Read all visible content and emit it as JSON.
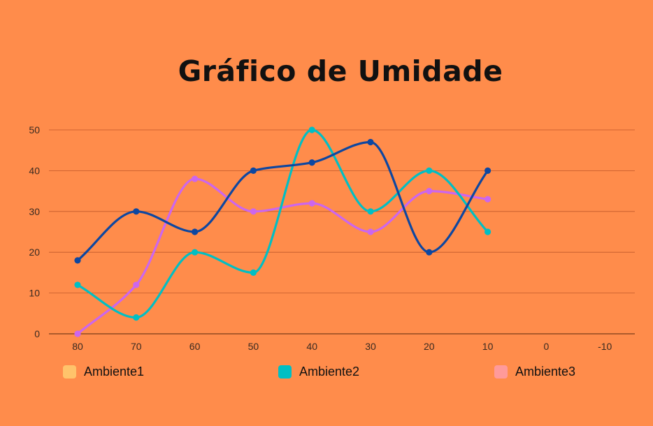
{
  "chart_data": {
    "type": "line",
    "title": "Gráfico de Umidade",
    "categories": [
      "80",
      "70",
      "60",
      "50",
      "40",
      "30",
      "20",
      "10",
      "0",
      "-10"
    ],
    "yticks": [
      "50",
      "40",
      "30",
      "20",
      "10",
      "0"
    ],
    "ylim": [
      0,
      50
    ],
    "grid": true,
    "legend_position": "bottom",
    "series": [
      {
        "name": "Ambiente1",
        "color": "#0D47A1",
        "legend_color": "#FFC36B",
        "values": [
          18,
          30,
          25,
          40,
          42,
          47,
          20,
          40,
          null,
          null
        ]
      },
      {
        "name": "Ambiente2",
        "color": "#00BFC4",
        "legend_color": "#00BFC4",
        "values": [
          12,
          4,
          20,
          15,
          50,
          30,
          40,
          25,
          null,
          null
        ]
      },
      {
        "name": "Ambiente3",
        "color": "#CC66EE",
        "legend_color": "#FF9A9A",
        "values": [
          0,
          12,
          38,
          30,
          32,
          25,
          35,
          33,
          null,
          null
        ]
      }
    ]
  }
}
